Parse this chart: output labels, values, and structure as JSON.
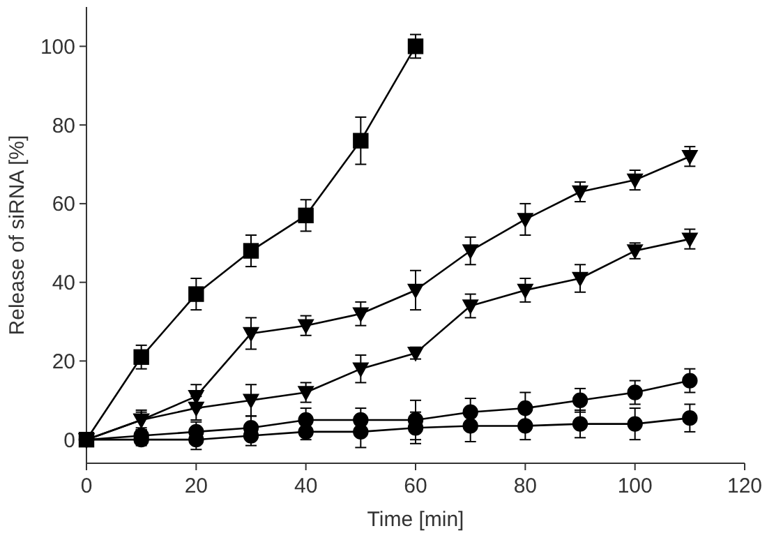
{
  "chart_data": {
    "type": "line",
    "xlabel": "Time [min]",
    "ylabel": "Release of siRNA [%]",
    "xlim": [
      0,
      120
    ],
    "ylim": [
      -6,
      110
    ],
    "xticks": [
      0,
      20,
      40,
      60,
      80,
      100,
      120
    ],
    "yticks": [
      0,
      20,
      40,
      60,
      80,
      100
    ],
    "grid": false,
    "line_style": "solid",
    "series": [
      {
        "color": "#000000",
        "marker": "circle",
        "x": [
          0,
          10,
          20,
          30,
          40,
          50,
          60,
          70,
          80,
          90,
          100,
          110
        ],
        "values": [
          0,
          1,
          2,
          3,
          5,
          5,
          5,
          7,
          8,
          10,
          12,
          15
        ],
        "errors": [
          null,
          1.5,
          2.5,
          3,
          3,
          3,
          5,
          3.5,
          4,
          3,
          3,
          3
        ]
      },
      {
        "color": "#000000",
        "marker": "circle",
        "x": [
          0,
          10,
          20,
          30,
          40,
          50,
          60,
          70,
          80,
          90,
          100,
          110
        ],
        "values": [
          0,
          0,
          0,
          1,
          2,
          2,
          3,
          3.5,
          3.5,
          4,
          4,
          5.5
        ],
        "errors": [
          null,
          1.5,
          2.5,
          2.5,
          2,
          4,
          4,
          4,
          3.5,
          3.5,
          4,
          3.5
        ]
      },
      {
        "color": "#000000",
        "marker": "square",
        "x": [
          0,
          10,
          20,
          30,
          40,
          50,
          60
        ],
        "values": [
          0,
          21,
          37,
          48,
          57,
          76,
          100
        ],
        "errors": [
          null,
          3,
          4,
          4,
          4,
          6,
          3
        ]
      },
      {
        "color": "#000000",
        "marker": "triangle",
        "x": [
          0,
          10,
          20,
          30,
          40,
          50,
          60,
          70,
          80,
          90,
          100,
          110
        ],
        "values": [
          0,
          5,
          11,
          27,
          29,
          32,
          38,
          48,
          56,
          63,
          66,
          72
        ],
        "errors": [
          null,
          2.5,
          3,
          4,
          2.5,
          3,
          5,
          3.5,
          4,
          2.5,
          2.5,
          2.5
        ]
      },
      {
        "color": "#000000",
        "marker": "triangle",
        "x": [
          0,
          10,
          20,
          30,
          40,
          50,
          60,
          70,
          80,
          90,
          100,
          110
        ],
        "values": [
          0,
          5,
          8,
          10,
          12,
          18,
          22,
          34,
          38,
          41,
          48,
          51
        ],
        "errors": [
          null,
          2,
          3,
          4,
          2.5,
          3.5,
          1.5,
          3,
          3,
          3.5,
          2,
          2.5
        ]
      }
    ]
  }
}
